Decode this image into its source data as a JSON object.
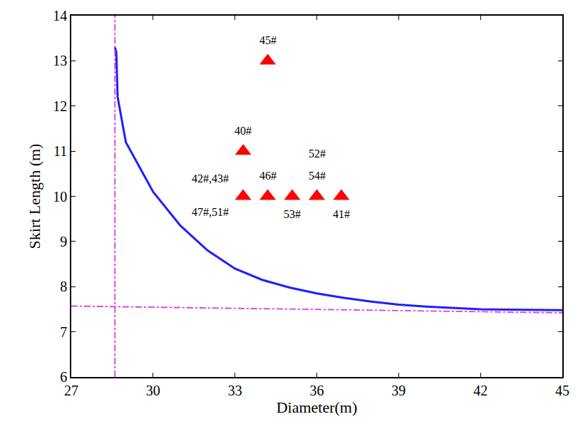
{
  "chart_data": {
    "type": "line",
    "x_label": "Diameter(m)",
    "y_label": "Skirt Length (m)",
    "xlim": [
      27,
      45
    ],
    "ylim": [
      6,
      14
    ],
    "xticks": [
      27,
      30,
      33,
      36,
      39,
      42,
      45
    ],
    "yticks": [
      6,
      7,
      8,
      9,
      10,
      11,
      12,
      13,
      14
    ],
    "grid": false,
    "series": [
      {
        "type": "line",
        "color": "#1f1fff",
        "line_style": "solid",
        "x": [
          28.6,
          28.65,
          28.7,
          29,
          30,
          31,
          32,
          33,
          34,
          35,
          36,
          37,
          38,
          39,
          40,
          41,
          42,
          43,
          44,
          45
        ],
        "values": [
          13.3,
          13.2,
          12.2,
          11.2,
          10.1,
          9.35,
          8.8,
          8.4,
          8.15,
          7.98,
          7.85,
          7.75,
          7.67,
          7.6,
          7.56,
          7.53,
          7.5,
          7.49,
          7.48,
          7.48
        ]
      },
      {
        "type": "line",
        "color": "#e03ce0",
        "line_style": "dashdot",
        "x": [
          28.6,
          28.6
        ],
        "values": [
          6,
          14
        ]
      },
      {
        "type": "line",
        "color": "#e03ce0",
        "line_style": "dashdot",
        "x": [
          27,
          45
        ],
        "values": [
          7.57,
          7.42
        ]
      },
      {
        "type": "scatter",
        "color": "#ff0000",
        "marker": "triangle-up",
        "x": [
          34.2,
          33.3,
          33.3,
          34.2,
          35.1,
          36,
          36.9
        ],
        "values": [
          13,
          11,
          10,
          10,
          10,
          10,
          10
        ]
      }
    ],
    "annotations": [
      {
        "text": "45#",
        "x": 34.2,
        "y": 13.45
      },
      {
        "text": "40#",
        "x": 33.3,
        "y": 11.45
      },
      {
        "text": "42#,43#",
        "x": 32.1,
        "y": 10.4
      },
      {
        "text": "47#,51#",
        "x": 32.1,
        "y": 9.65
      },
      {
        "text": "46#",
        "x": 34.2,
        "y": 10.45
      },
      {
        "text": "53#",
        "x": 35.1,
        "y": 9.6
      },
      {
        "text": "52#",
        "x": 36,
        "y": 10.95
      },
      {
        "text": "54#",
        "x": 36,
        "y": 10.45
      },
      {
        "text": "41#",
        "x": 36.9,
        "y": 9.6
      }
    ]
  }
}
